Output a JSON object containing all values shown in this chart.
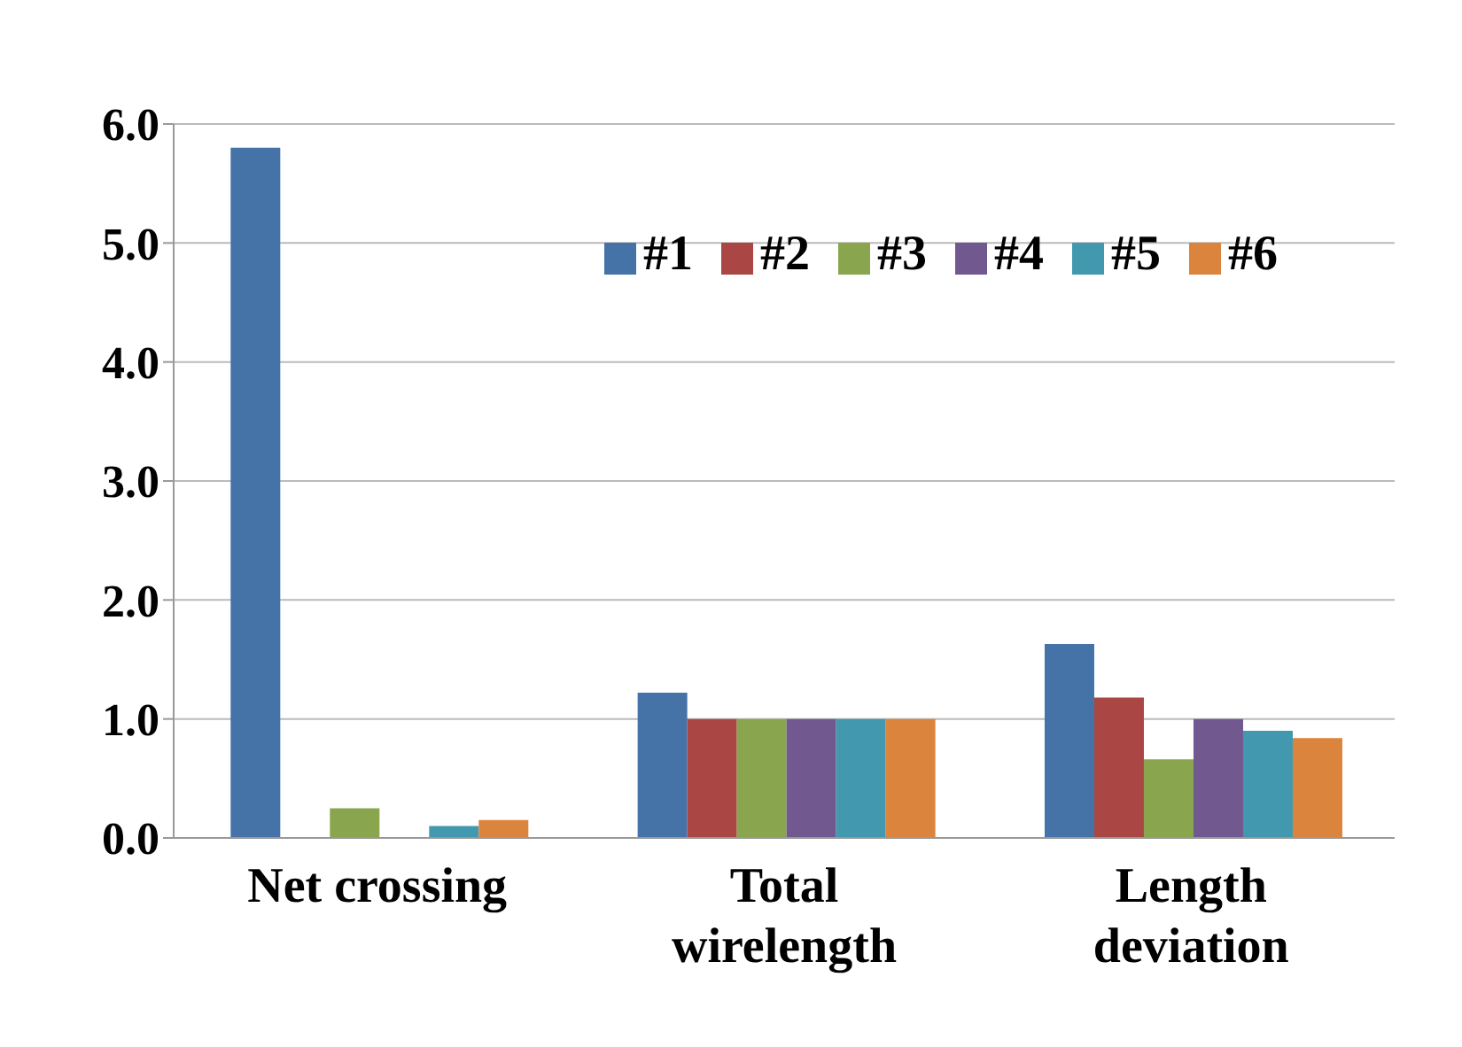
{
  "chart_data": {
    "type": "bar",
    "categories": [
      "Net crossing",
      "Total wirelength",
      "Length deviation"
    ],
    "series": [
      {
        "name": "#1",
        "color": "#4572a7",
        "values": [
          5.8,
          1.22,
          1.63
        ]
      },
      {
        "name": "#2",
        "color": "#aa4643",
        "values": [
          0,
          1.0,
          1.18
        ]
      },
      {
        "name": "#3",
        "color": "#89a54e",
        "values": [
          0.25,
          1.0,
          0.66
        ]
      },
      {
        "name": "#4",
        "color": "#71588f",
        "values": [
          0,
          1.0,
          1.0
        ]
      },
      {
        "name": "#5",
        "color": "#4198af",
        "values": [
          0.1,
          1.0,
          0.9
        ]
      },
      {
        "name": "#6",
        "color": "#db843d",
        "values": [
          0.15,
          1.0,
          0.84
        ]
      }
    ],
    "ylim": [
      0,
      6
    ],
    "yticks": [
      {
        "value": 0,
        "label": "0.0"
      },
      {
        "value": 1,
        "label": "1.0"
      },
      {
        "value": 2,
        "label": "2.0"
      },
      {
        "value": 3,
        "label": "3.0"
      },
      {
        "value": 4,
        "label": "4.0"
      },
      {
        "value": 5,
        "label": "5.0"
      },
      {
        "value": 6,
        "label": "6.0"
      }
    ],
    "grid": "y",
    "legend": "top right"
  }
}
